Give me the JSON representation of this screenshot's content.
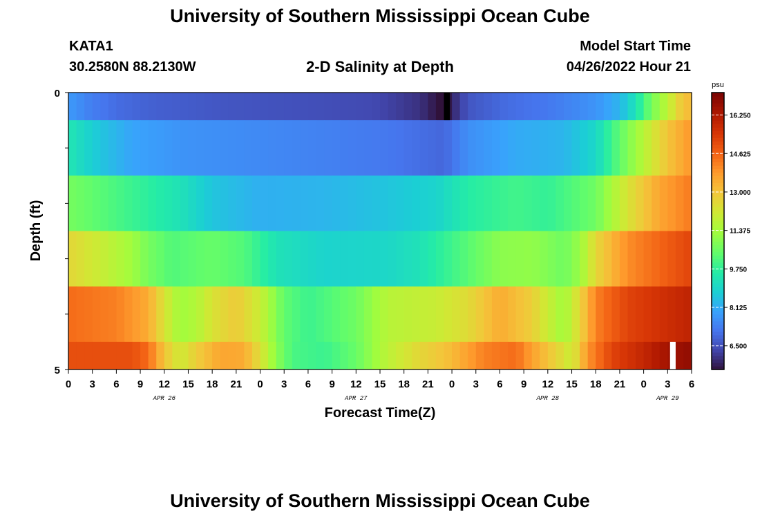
{
  "header": {
    "title": "University of Southern Mississippi Ocean Cube",
    "station": "KATA1",
    "coords": "30.2580N  88.2130W",
    "plot_title": "2-D Salinity at Depth",
    "start_label": "Model Start Time",
    "start_value": "04/26/2022 Hour 21"
  },
  "footer": {
    "title": "University of Southern Mississippi Ocean Cube"
  },
  "chart_data": {
    "type": "heatmap",
    "title": "2-D Salinity at Depth",
    "xlabel": "Forecast Time(Z)",
    "ylabel": "Depth (ft)",
    "x_ticks": [
      "0",
      "3",
      "6",
      "9",
      "12",
      "15",
      "18",
      "21",
      "0",
      "3",
      "6",
      "9",
      "12",
      "15",
      "18",
      "21",
      "0",
      "3",
      "6",
      "9",
      "12",
      "15",
      "18",
      "21",
      "0",
      "3",
      "6"
    ],
    "x_tick_hours": [
      0,
      3,
      6,
      9,
      12,
      15,
      18,
      21,
      24,
      27,
      30,
      33,
      36,
      39,
      42,
      45,
      48,
      51,
      54,
      57,
      60,
      63,
      66,
      69,
      72,
      75,
      78
    ],
    "date_labels": [
      {
        "text": "APR 26",
        "hour": 12
      },
      {
        "text": "APR 27",
        "hour": 36
      },
      {
        "text": "APR 28",
        "hour": 60
      },
      {
        "text": "APR 29",
        "hour": 75
      }
    ],
    "y_ticks": [
      "0",
      "5"
    ],
    "ylim": [
      0,
      5
    ],
    "xlim": [
      0,
      78
    ],
    "colorbar": {
      "unit": "psu",
      "min": 5.5,
      "max": 17.2,
      "ticks": [
        "6.500",
        "8.125",
        "9.750",
        "11.375",
        "13.000",
        "14.625",
        "16.250"
      ],
      "tick_values": [
        6.5,
        8.125,
        9.75,
        11.375,
        13.0,
        14.625,
        16.25
      ]
    },
    "layers": [
      {
        "depth_top": 0.0,
        "depth_bottom": 0.5,
        "keys": [
          [
            0,
            7.8
          ],
          [
            3,
            7.3
          ],
          [
            6,
            7.0
          ],
          [
            10,
            6.8
          ],
          [
            20,
            6.6
          ],
          [
            30,
            6.5
          ],
          [
            38,
            6.4
          ],
          [
            44,
            6.0
          ],
          [
            46.5,
            5.5
          ],
          [
            47.5,
            5.6
          ],
          [
            50,
            6.6
          ],
          [
            55,
            7.0
          ],
          [
            60,
            7.2
          ],
          [
            66,
            7.7
          ],
          [
            69,
            8.3
          ],
          [
            71,
            9.3
          ],
          [
            73,
            10.7
          ],
          [
            75,
            11.8
          ],
          [
            76.5,
            12.8
          ],
          [
            78,
            13.3
          ]
        ]
      },
      {
        "depth_top": 0.5,
        "depth_bottom": 1.5,
        "keys": [
          [
            0,
            9.4
          ],
          [
            4,
            8.6
          ],
          [
            8,
            8.0
          ],
          [
            14,
            7.7
          ],
          [
            30,
            7.4
          ],
          [
            40,
            7.2
          ],
          [
            47,
            6.9
          ],
          [
            50,
            7.6
          ],
          [
            56,
            8.1
          ],
          [
            62,
            8.3
          ],
          [
            66,
            9.0
          ],
          [
            69,
            10.4
          ],
          [
            72,
            11.7
          ],
          [
            75,
            13.0
          ],
          [
            78,
            13.9
          ]
        ]
      },
      {
        "depth_top": 1.5,
        "depth_bottom": 2.5,
        "keys": [
          [
            0,
            10.7
          ],
          [
            4,
            10.3
          ],
          [
            8,
            9.9
          ],
          [
            14,
            9.3
          ],
          [
            18,
            8.6
          ],
          [
            24,
            8.2
          ],
          [
            32,
            8.3
          ],
          [
            40,
            8.6
          ],
          [
            46,
            8.9
          ],
          [
            50,
            9.6
          ],
          [
            56,
            10.0
          ],
          [
            60,
            9.8
          ],
          [
            66,
            10.6
          ],
          [
            70,
            12.3
          ],
          [
            74,
            13.6
          ],
          [
            78,
            14.3
          ]
        ]
      },
      {
        "depth_top": 2.5,
        "depth_bottom": 3.5,
        "keys": [
          [
            0,
            12.6
          ],
          [
            4,
            12.0
          ],
          [
            8,
            11.3
          ],
          [
            10,
            10.7
          ],
          [
            13,
            10.2
          ],
          [
            18,
            10.5
          ],
          [
            22,
            10.2
          ],
          [
            26,
            9.3
          ],
          [
            32,
            8.9
          ],
          [
            40,
            9.0
          ],
          [
            44,
            9.3
          ],
          [
            50,
            10.3
          ],
          [
            54,
            11.0
          ],
          [
            58,
            11.1
          ],
          [
            62,
            10.6
          ],
          [
            64,
            11.2
          ],
          [
            66,
            12.6
          ],
          [
            70,
            14.0
          ],
          [
            74,
            14.6
          ],
          [
            78,
            15.2
          ]
        ]
      },
      {
        "depth_top": 3.5,
        "depth_bottom": 4.5,
        "keys": [
          [
            0,
            14.5
          ],
          [
            6,
            14.2
          ],
          [
            10,
            13.5
          ],
          [
            12,
            12.3
          ],
          [
            14,
            11.3
          ],
          [
            16,
            11.6
          ],
          [
            18,
            12.3
          ],
          [
            21,
            12.9
          ],
          [
            24,
            12.0
          ],
          [
            27,
            10.4
          ],
          [
            30,
            9.9
          ],
          [
            36,
            10.6
          ],
          [
            40,
            11.7
          ],
          [
            46,
            12.0
          ],
          [
            50,
            12.5
          ],
          [
            54,
            13.5
          ],
          [
            58,
            12.8
          ],
          [
            60,
            12.0
          ],
          [
            62,
            11.3
          ],
          [
            64,
            12.6
          ],
          [
            66,
            14.2
          ],
          [
            70,
            15.2
          ],
          [
            78,
            16.0
          ]
        ]
      },
      {
        "depth_top": 4.5,
        "depth_bottom": 5.0,
        "keys": [
          [
            0,
            15.0
          ],
          [
            8,
            15.0
          ],
          [
            10,
            14.5
          ],
          [
            12,
            13.0
          ],
          [
            14,
            12.1
          ],
          [
            16,
            12.8
          ],
          [
            19,
            13.6
          ],
          [
            22,
            13.5
          ],
          [
            24,
            12.4
          ],
          [
            26,
            11.0
          ],
          [
            28,
            10.1
          ],
          [
            32,
            9.9
          ],
          [
            36,
            10.5
          ],
          [
            40,
            11.8
          ],
          [
            44,
            12.6
          ],
          [
            48,
            13.2
          ],
          [
            52,
            14.2
          ],
          [
            56,
            14.5
          ],
          [
            58,
            13.7
          ],
          [
            61,
            12.7
          ],
          [
            63,
            12.0
          ],
          [
            65,
            13.9
          ],
          [
            68,
            15.2
          ],
          [
            72,
            15.9
          ],
          [
            75,
            16.5
          ],
          [
            78,
            16.8
          ]
        ]
      }
    ],
    "grid": false,
    "legend": "right"
  }
}
